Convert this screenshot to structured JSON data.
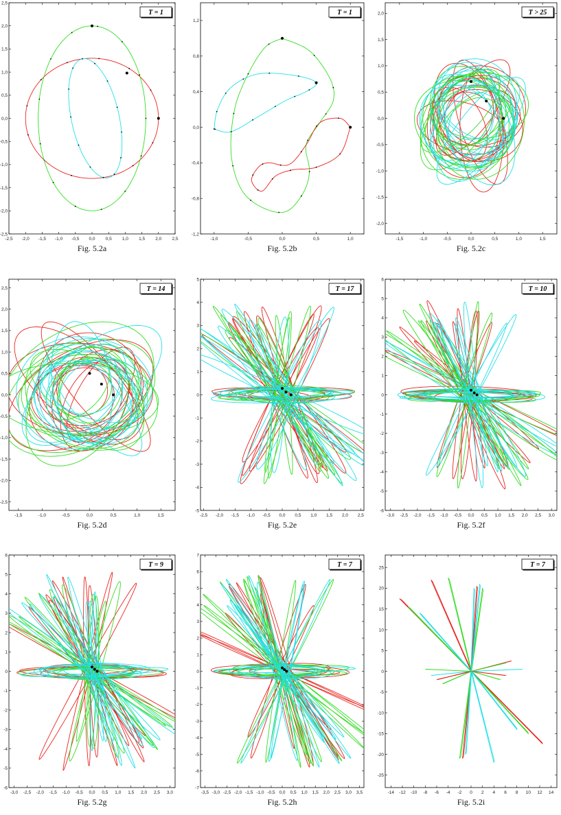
{
  "colors": {
    "red": "#e8231d",
    "green": "#33dd22",
    "cyan": "#22e0e8",
    "axis": "#000000"
  },
  "chart_data": [
    {
      "type": "scatter",
      "id": "a",
      "caption": "Fig. 5.2a",
      "badge": "T = 1",
      "xlim": [
        -2.5,
        2.5
      ],
      "ylim": [
        -2.5,
        2.5
      ],
      "xticks": [
        "-2,5",
        "-2,0",
        "-1,5",
        "-1,0",
        "-0,5",
        "0,0",
        "0,5",
        "1,0",
        "1,5",
        "2,0",
        "2,5"
      ],
      "yticks": [
        "-2,5",
        "-2,0",
        "-1,5",
        "-1,0",
        "-0,5",
        "0,0",
        "0,5",
        "1,0",
        "1,5",
        "2,0",
        "2,5"
      ],
      "curves": [
        {
          "name": "red",
          "shape": "ellipse",
          "cx": 0,
          "cy": 0,
          "rx": 2.0,
          "ry": 1.3,
          "rot": 0
        },
        {
          "name": "green",
          "shape": "ellipse",
          "cx": 0,
          "cy": 0,
          "rx": 1.62,
          "ry": 2.0,
          "rot": 0
        },
        {
          "name": "cyan",
          "shape": "ellipse",
          "cx": 0.1,
          "cy": 0,
          "rx": 0.7,
          "ry": 1.35,
          "rot": 20
        }
      ],
      "bodies": [
        {
          "x": 0,
          "y": 2.0
        },
        {
          "x": 1.05,
          "y": 0.98
        },
        {
          "x": 2.0,
          "y": 0
        }
      ]
    },
    {
      "type": "scatter",
      "id": "b",
      "caption": "Fig. 5.2b",
      "badge": "T = 1",
      "xlim": [
        -1.2,
        1.2
      ],
      "ylim": [
        -1.2,
        1.4
      ],
      "xticks": [
        "-1,0",
        "-0,5",
        "0,0",
        "0,5",
        "1,0"
      ],
      "yticks": [
        "-1,2",
        "-0,8",
        "-0,4",
        "0,0",
        "0,4",
        "0,8",
        "1,2"
      ],
      "curves": [
        {
          "name": "green",
          "shape": "path",
          "points": [
            [
              0,
              1.0
            ],
            [
              0.4,
              0.86
            ],
            [
              0.7,
              0.55
            ],
            [
              0.75,
              0.3
            ],
            [
              0.55,
              0.05
            ],
            [
              0.35,
              -0.2
            ],
            [
              0.4,
              -0.5
            ],
            [
              0.3,
              -0.75
            ],
            [
              0.05,
              -0.95
            ],
            [
              -0.3,
              -0.9
            ],
            [
              -0.6,
              -0.7
            ],
            [
              -0.75,
              -0.3
            ],
            [
              -0.7,
              0.2
            ],
            [
              -0.5,
              0.6
            ],
            [
              -0.25,
              0.9
            ],
            [
              0,
              1.0
            ]
          ]
        },
        {
          "name": "cyan",
          "shape": "path",
          "points": [
            [
              -1.0,
              -0.02
            ],
            [
              -0.95,
              0.2
            ],
            [
              -0.75,
              0.45
            ],
            [
              -0.35,
              0.6
            ],
            [
              0.2,
              0.58
            ],
            [
              0.5,
              0.5
            ],
            [
              0.35,
              0.4
            ],
            [
              0.05,
              0.3
            ],
            [
              -0.35,
              0.12
            ],
            [
              -0.75,
              -0.05
            ],
            [
              -1.0,
              -0.02
            ]
          ]
        },
        {
          "name": "red",
          "shape": "path",
          "points": [
            [
              1.0,
              0.0
            ],
            [
              0.85,
              0.1
            ],
            [
              0.55,
              0.05
            ],
            [
              0.35,
              -0.2
            ],
            [
              0.1,
              -0.42
            ],
            [
              -0.2,
              -0.4
            ],
            [
              -0.35,
              -0.45
            ],
            [
              -0.45,
              -0.6
            ],
            [
              -0.3,
              -0.72
            ],
            [
              -0.1,
              -0.55
            ],
            [
              0.15,
              -0.48
            ],
            [
              0.5,
              -0.45
            ],
            [
              0.85,
              -0.3
            ],
            [
              1.0,
              0.0
            ]
          ]
        }
      ],
      "bodies": [
        {
          "x": 0,
          "y": 1.0
        },
        {
          "x": 0.5,
          "y": 0.5
        },
        {
          "x": 1.0,
          "y": 0
        }
      ]
    },
    {
      "type": "scatter",
      "id": "c",
      "caption": "Fig. 5.2c",
      "badge": "T > 25",
      "xlim": [
        -1.8,
        1.8
      ],
      "ylim": [
        -2.2,
        2.2
      ],
      "xticks": [
        "-1,5",
        "-1,0",
        "-0,5",
        "0,0",
        "0,5",
        "1,0",
        "1,5"
      ],
      "yticks": [
        "-2,0",
        "-1,5",
        "-1,0",
        "-0,5",
        "0,0",
        "0,5",
        "1,0",
        "1,5",
        "2,0"
      ],
      "tangle": {
        "kind": "blob",
        "count": 14,
        "rmin": 0.5,
        "rmax": 1.2,
        "spread": 0.25
      },
      "bodies": [
        {
          "x": 0,
          "y": 0.7
        },
        {
          "x": 0.32,
          "y": 0.33
        },
        {
          "x": 0.68,
          "y": 0
        }
      ]
    },
    {
      "type": "scatter",
      "id": "d",
      "caption": "Fig. 5.2d",
      "badge": "T = 14",
      "xlim": [
        -1.7,
        1.8
      ],
      "ylim": [
        -2.7,
        2.7
      ],
      "xticks": [
        "-1,5",
        "-1,0",
        "-0,5",
        "0,0",
        "0,5",
        "1,0",
        "1,5"
      ],
      "yticks": [
        "-2,5",
        "-2,0",
        "-1,5",
        "-1,0",
        "-0,5",
        "0,0",
        "0,5",
        "1,0",
        "1,5",
        "2,0",
        "2,5"
      ],
      "tangle": {
        "kind": "blob",
        "count": 14,
        "rmin": 0.6,
        "rmax": 1.7,
        "spread": 0.3
      },
      "bodies": [
        {
          "x": 0,
          "y": 0.5
        },
        {
          "x": 0.25,
          "y": 0.25
        },
        {
          "x": 0.5,
          "y": 0
        }
      ]
    },
    {
      "type": "scatter",
      "id": "e",
      "caption": "Fig. 5.2e",
      "badge": "T = 17",
      "xlim": [
        -2.6,
        2.6
      ],
      "ylim": [
        -5,
        5
      ],
      "xticks": [
        "-2,5",
        "-2,0",
        "-1,5",
        "-1,0",
        "-0,5",
        "0,0",
        "0,5",
        "1,0",
        "1,5",
        "2,0",
        "2,5"
      ],
      "yticks": [
        "-5",
        "-4",
        "-3",
        "-2",
        "-1",
        "0",
        "1",
        "2",
        "3",
        "4",
        "5"
      ],
      "tangle": {
        "kind": "star",
        "len": 4.0,
        "width": 0.18,
        "count": 12,
        "spreadX": 2.4,
        "band": 1.7
      },
      "bodies": [
        {
          "x": 0,
          "y": 0.28
        },
        {
          "x": 0.12,
          "y": 0.12
        },
        {
          "x": 0.28,
          "y": 0
        }
      ]
    },
    {
      "type": "scatter",
      "id": "f",
      "caption": "Fig. 5.2f",
      "badge": "T = 10",
      "xlim": [
        -3.2,
        3.2
      ],
      "ylim": [
        -6,
        6
      ],
      "xticks": [
        "-3,0",
        "-2,5",
        "-2,0",
        "-1,5",
        "-1,0",
        "-0,5",
        "0,0",
        "0,5",
        "1,0",
        "1,5",
        "2,0",
        "2,5",
        "3,0"
      ],
      "yticks": [
        "-6",
        "-5",
        "-4",
        "-3",
        "-2",
        "-1",
        "0",
        "1",
        "2",
        "3",
        "4",
        "5",
        "6"
      ],
      "tangle": {
        "kind": "star",
        "len": 4.7,
        "width": 0.16,
        "count": 11,
        "spreadX": 2.9,
        "band": 1.9
      },
      "bodies": [
        {
          "x": 0,
          "y": 0.24
        },
        {
          "x": 0.12,
          "y": 0.1
        },
        {
          "x": 0.22,
          "y": 0
        }
      ]
    },
    {
      "type": "scatter",
      "id": "g",
      "caption": "Fig. 5.2g",
      "badge": "T = 9",
      "xlim": [
        -3.2,
        3.2
      ],
      "ylim": [
        -6,
        6
      ],
      "xticks": [
        "-3,0",
        "-2,5",
        "-2,0",
        "-1,5",
        "-1,0",
        "-0,5",
        "0,0",
        "0,5",
        "1,0",
        "1,5",
        "2,0",
        "2,5",
        "3,0"
      ],
      "yticks": [
        "-6",
        "-5",
        "-4",
        "-3",
        "-2",
        "-1",
        "0",
        "1",
        "2",
        "3",
        "4",
        "5",
        "6"
      ],
      "tangle": {
        "kind": "star",
        "len": 4.8,
        "width": 0.14,
        "count": 11,
        "spreadX": 3.0,
        "band": 1.9
      },
      "bodies": [
        {
          "x": 0,
          "y": 0.22
        },
        {
          "x": 0.1,
          "y": 0.1
        },
        {
          "x": 0.2,
          "y": 0
        }
      ]
    },
    {
      "type": "scatter",
      "id": "h",
      "caption": "Fig. 5.2h",
      "badge": "T = 7",
      "xlim": [
        -3.7,
        3.7
      ],
      "ylim": [
        -7,
        7
      ],
      "xticks": [
        "-3,5",
        "-3,0",
        "-2,5",
        "-2,0",
        "-1,5",
        "-1,0",
        "-0,5",
        "0,0",
        "0,5",
        "1,0",
        "1,5",
        "2,0",
        "2,5",
        "3,0",
        "3,5"
      ],
      "yticks": [
        "-7",
        "-6",
        "-5",
        "-4",
        "-3",
        "-2",
        "-1",
        "0",
        "1",
        "2",
        "3",
        "4",
        "5",
        "6",
        "7"
      ],
      "tangle": {
        "kind": "star",
        "len": 5.6,
        "width": 0.12,
        "count": 11,
        "spreadX": 3.4,
        "band": 2.2
      },
      "bodies": [
        {
          "x": 0,
          "y": 0.2
        },
        {
          "x": 0.1,
          "y": 0.1
        },
        {
          "x": 0.2,
          "y": 0
        }
      ]
    },
    {
      "type": "scatter",
      "id": "i",
      "caption": "Fig. 5.2i",
      "badge": "T = 7",
      "xlim": [
        -15,
        15
      ],
      "ylim": [
        -28,
        28
      ],
      "xticks": [
        "-14",
        "-12",
        "-10",
        "-8",
        "-6",
        "-4",
        "-2",
        "0",
        "2",
        "4",
        "6",
        "8",
        "10",
        "12",
        "14"
      ],
      "yticks": [
        "-25",
        "-20",
        "-15",
        "-10",
        "-5",
        "0",
        "5",
        "10",
        "15",
        "20",
        "25"
      ],
      "tangle": {
        "kind": "lines",
        "rays": [
          [
            -12.5,
            17.5
          ],
          [
            -11,
            15.5
          ],
          [
            -9,
            14
          ],
          [
            -7,
            22
          ],
          [
            -4,
            22.5
          ],
          [
            0.5,
            20
          ],
          [
            1,
            20.5
          ],
          [
            2,
            20
          ],
          [
            1.5,
            21
          ],
          [
            7,
            2.5
          ],
          [
            6,
            2
          ],
          [
            9,
            0.5
          ],
          [
            6,
            -1
          ],
          [
            5,
            -2
          ],
          [
            4,
            -22
          ],
          [
            -1.5,
            -21
          ],
          [
            -2,
            -21
          ],
          [
            -1,
            -20
          ],
          [
            12.5,
            -17.5
          ],
          [
            10,
            -15
          ],
          [
            8,
            -14
          ],
          [
            -6,
            -2
          ],
          [
            -5,
            -3
          ],
          [
            -7,
            -1
          ],
          [
            -3,
            -1
          ],
          [
            -8,
            0.5
          ]
        ]
      },
      "bodies": []
    }
  ]
}
